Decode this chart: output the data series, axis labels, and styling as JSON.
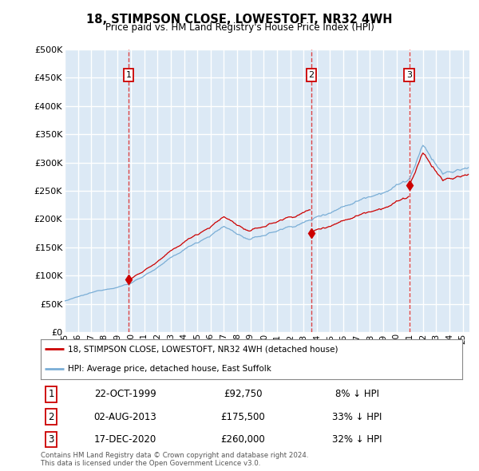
{
  "title": "18, STIMPSON CLOSE, LOWESTOFT, NR32 4WH",
  "subtitle": "Price paid vs. HM Land Registry's House Price Index (HPI)",
  "ylim": [
    0,
    500000
  ],
  "yticks": [
    0,
    50000,
    100000,
    150000,
    200000,
    250000,
    300000,
    350000,
    400000,
    450000,
    500000
  ],
  "bg_color": "#dce9f5",
  "grid_color": "#ffffff",
  "sale_color": "#cc0000",
  "hpi_color": "#7aaed6",
  "sale_dates": [
    1999.81,
    2013.58,
    2020.96
  ],
  "sale_prices": [
    92750,
    175500,
    260000
  ],
  "sale_labels": [
    "1",
    "2",
    "3"
  ],
  "vline_color": "#dd3333",
  "legend_sale_label": "18, STIMPSON CLOSE, LOWESTOFT, NR32 4WH (detached house)",
  "legend_hpi_label": "HPI: Average price, detached house, East Suffolk",
  "table_data": [
    [
      "1",
      "22-OCT-1999",
      "£92,750",
      "8% ↓ HPI"
    ],
    [
      "2",
      "02-AUG-2013",
      "£175,500",
      "33% ↓ HPI"
    ],
    [
      "3",
      "17-DEC-2020",
      "£260,000",
      "32% ↓ HPI"
    ]
  ],
  "footnote": "Contains HM Land Registry data © Crown copyright and database right 2024.\nThis data is licensed under the Open Government Licence v3.0.",
  "xmin": 1995.0,
  "xmax": 2025.5,
  "hpi_seed": 12345,
  "n_months": 366
}
